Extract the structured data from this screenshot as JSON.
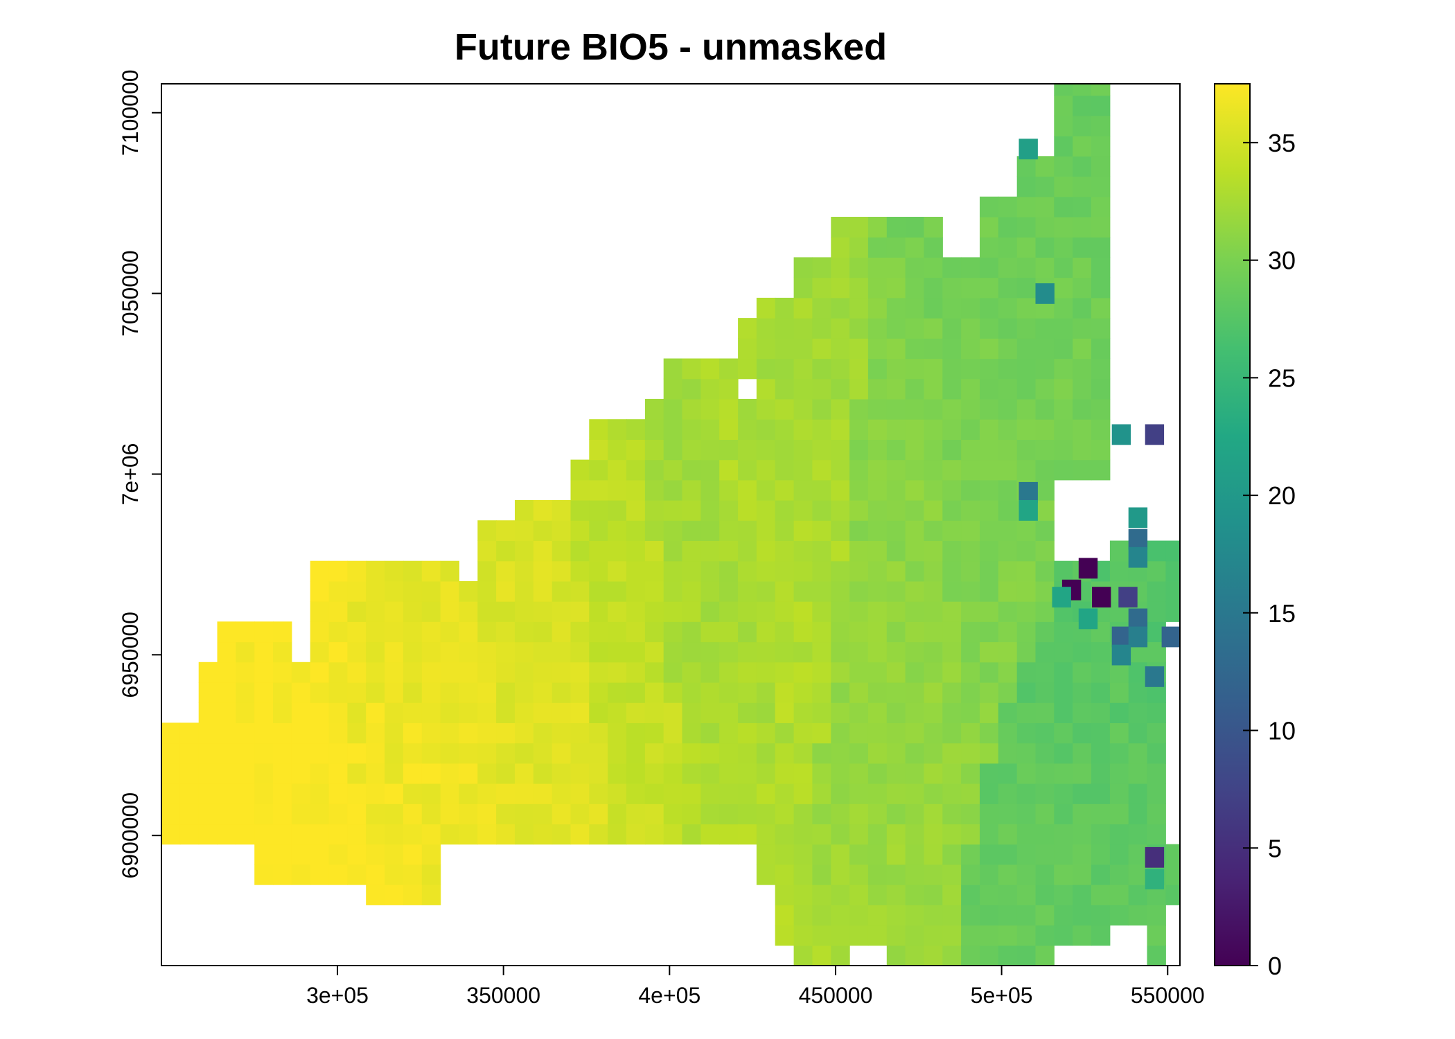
{
  "chart_data": {
    "type": "heatmap",
    "title": "Future BIO5 - unmasked",
    "xlabel": "",
    "ylabel": "",
    "x_ticks": [
      {
        "value": 300000,
        "label": "3e+05"
      },
      {
        "value": 350000,
        "label": "350000"
      },
      {
        "value": 400000,
        "label": "4e+05"
      },
      {
        "value": 450000,
        "label": "450000"
      },
      {
        "value": 500000,
        "label": "5e+05"
      },
      {
        "value": 550000,
        "label": "550000"
      }
    ],
    "y_ticks": [
      {
        "value": 6900000,
        "label": "6900000"
      },
      {
        "value": 6950000,
        "label": "6950000"
      },
      {
        "value": 7000000,
        "label": "7e+06"
      },
      {
        "value": 7050000,
        "label": "7050000"
      },
      {
        "value": 7100000,
        "label": "7100000"
      }
    ],
    "xlim": [
      247000,
      553700
    ],
    "ylim": [
      6864000,
      7108000
    ],
    "cell_size": 5600,
    "colorbar": {
      "colormap": "viridis",
      "range": [
        0,
        37.5
      ],
      "ticks": [
        0,
        5,
        10,
        15,
        20,
        25,
        30,
        35
      ],
      "tick_labels": [
        "0",
        "5",
        "10",
        "15",
        "20",
        "25",
        "30",
        "35"
      ]
    },
    "grid": false,
    "legend": "colorbar-right",
    "value_regions": [
      {
        "x": [
          247000,
          270000
        ],
        "y": [
          6900000,
          6935000
        ],
        "value": 36.8
      },
      {
        "x": [
          264000,
          300000
        ],
        "y": [
          6890000,
          6958000
        ],
        "value": 36.2
      },
      {
        "x": [
          300000,
          352000
        ],
        "y": [
          6880000,
          6975000
        ],
        "value": 35.6
      },
      {
        "x": [
          352000,
          375000
        ],
        "y": [
          6900000,
          6990000
        ],
        "value": 35.2
      },
      {
        "x": [
          375000,
          400000
        ],
        "y": [
          6900000,
          7010000
        ],
        "value": 34.0
      },
      {
        "x": [
          400000,
          418000
        ],
        "y": [
          6900000,
          7025000
        ],
        "value": 32.8
      },
      {
        "x": [
          418000,
          455000
        ],
        "y": [
          6900000,
          7070000
        ],
        "value": 33.6
      },
      {
        "x": [
          455000,
          480000
        ],
        "y": [
          6890000,
          7060000
        ],
        "value": 32.0
      },
      {
        "x": [
          480000,
          515000
        ],
        "y": [
          6870000,
          7108000
        ],
        "value": 31.5
      },
      {
        "x": [
          515000,
          553700
        ],
        "y": [
          6880000,
          7010000
        ],
        "value": 29.0
      }
    ],
    "anomaly_cells": [
      {
        "x": 508000,
        "y": 7090000,
        "value": 21
      },
      {
        "x": 513000,
        "y": 7050000,
        "value": 18
      },
      {
        "x": 536000,
        "y": 7011000,
        "value": 19
      },
      {
        "x": 546000,
        "y": 7011000,
        "value": 7
      },
      {
        "x": 508000,
        "y": 6995000,
        "value": 15
      },
      {
        "x": 508000,
        "y": 6990000,
        "value": 22
      },
      {
        "x": 541000,
        "y": 6988000,
        "value": 20
      },
      {
        "x": 541000,
        "y": 6982000,
        "value": 13
      },
      {
        "x": 541000,
        "y": 6977000,
        "value": 17
      },
      {
        "x": 526000,
        "y": 6974000,
        "value": 0
      },
      {
        "x": 521000,
        "y": 6968000,
        "value": 0
      },
      {
        "x": 530000,
        "y": 6966000,
        "value": 0
      },
      {
        "x": 538000,
        "y": 6966000,
        "value": 7
      },
      {
        "x": 518000,
        "y": 6966000,
        "value": 22
      },
      {
        "x": 526000,
        "y": 6960000,
        "value": 22
      },
      {
        "x": 541000,
        "y": 6960000,
        "value": 13
      },
      {
        "x": 536000,
        "y": 6955000,
        "value": 12
      },
      {
        "x": 541000,
        "y": 6955000,
        "value": 16
      },
      {
        "x": 551000,
        "y": 6955000,
        "value": 12
      },
      {
        "x": 536000,
        "y": 6950000,
        "value": 17
      },
      {
        "x": 546000,
        "y": 6944000,
        "value": 15
      },
      {
        "x": 546000,
        "y": 6894000,
        "value": 5
      },
      {
        "x": 546000,
        "y": 6888000,
        "value": 24
      }
    ]
  }
}
